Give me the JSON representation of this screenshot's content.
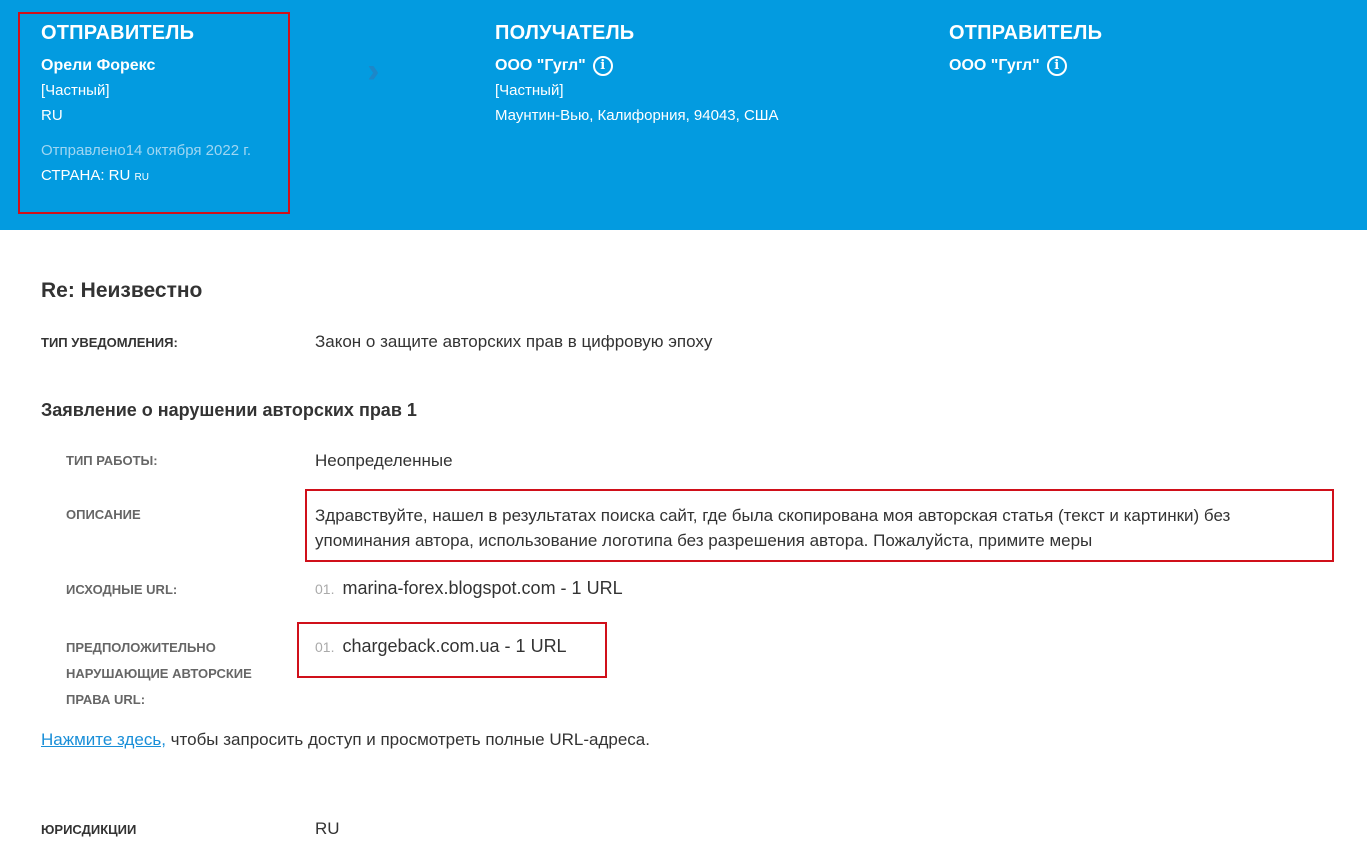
{
  "header": {
    "sender": {
      "heading": "ОТПРАВИТЕЛЬ",
      "name": "Орели Форекс",
      "type": "[Частный]",
      "country_code": "RU",
      "sent": "Отправлено14 октября 2022 г.",
      "country_label": "СТРАНА: RU",
      "country_small": "RU"
    },
    "recipient": {
      "heading": "ПОЛУЧАТЕЛЬ",
      "name": "ООО \"Гугл\"",
      "type": "[Частный]",
      "address": "Маунтин-Вью, Калифорния, 94043, США"
    },
    "submitter": {
      "heading": "ОТПРАВИТЕЛЬ",
      "name": "ООО \"Гугл\""
    },
    "colors": {
      "background": "#039be0",
      "annotation": "#d0101a"
    }
  },
  "main": {
    "title": "Re: Неизвестно",
    "notice_type_label": "ТИП УВЕДОМЛЕНИЯ:",
    "notice_type": "Закон о защите авторских прав в цифровую эпоху",
    "claim_heading": "Заявление о нарушении авторских прав 1",
    "work_type_label": "ТИП РАБОТЫ:",
    "work_type": "Неопределенные",
    "description_label": "ОПИСАНИЕ",
    "description": "Здравствуйте, нашел в результатах поиска сайт, где была скопирована моя авторская статья (текст и картинки) без упоминания автора, использование логотипа без разрешения автора. Пожалуйста, примите меры",
    "source_label": "ИСХОДНЫЕ URL:",
    "source_urls": [
      {
        "num": "01.",
        "text": "marina-forex.blogspot.com - 1 URL"
      }
    ],
    "infringing_label_lines": [
      "ПРЕДПОЛОЖИТЕЛЬНО",
      "НАРУШАЮЩИЕ АВТОРСКИЕ",
      "ПРАВА URL:"
    ],
    "infringing_urls": [
      {
        "num": "01.",
        "text": "chargeback.com.ua - 1 URL"
      }
    ],
    "access_link": "Нажмите здесь,",
    "access_text": " чтобы запросить доступ и просмотреть полные URL-адреса.",
    "jurisdiction_label": "ЮРИСДИКЦИИ",
    "jurisdiction": "RU"
  }
}
